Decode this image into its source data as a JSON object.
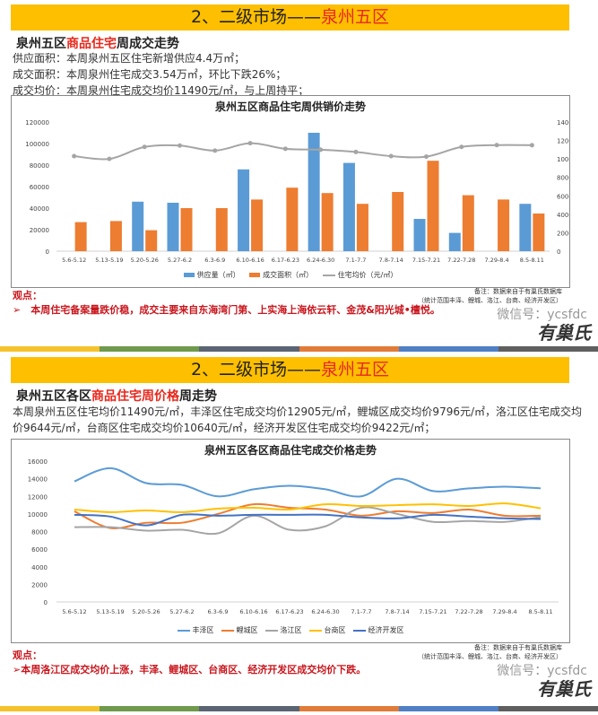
{
  "panel1": {
    "header_prefix": "2、二级市场——",
    "header_highlight": "泉州五区",
    "subtitle_a": "泉州五区",
    "subtitle_b": "商品住宅",
    "subtitle_c": "周成交走势",
    "lines": [
      "供应面积：本周泉州五区住宅新增供应4.4万㎡；",
      "成交面积：本周泉州住宅成交3.54万㎡，环比下跌26%；",
      "成交均价：本周泉州住宅成交均价11490元/㎡，与上周持平；"
    ],
    "note_line1": "备注：数据来自于有巢氏数据库",
    "note_line2": "（统计范围丰泽、鲤城、洛江、台商、经济开发区）",
    "viewpoint_label": "观点：",
    "viewpoint": "➢　本周住宅备案量跌价稳，成交主要来自东海湾门第、上实海上海依云轩、金茂&阳光城•檀悦。"
  },
  "panel2": {
    "header_prefix": "2、二级市场——",
    "header_highlight": "泉州五区",
    "subtitle_a": "泉州五区各区",
    "subtitle_b": "商品住宅周价格",
    "subtitle_c": "周走势",
    "lines": [
      "本周泉州五区住宅均价11490元/㎡，丰泽区住宅成交均价12905元/㎡，鲤城区成交均价9796元/㎡，洛江区住宅成交均",
      "价9644元/㎡，台商区住宅成交均价10640元/㎡，经济开发区住宅成交均价9422元/㎡；"
    ],
    "note_line1": "备注：数据来自于有巢氏数据库",
    "note_line2": "（统计范围丰泽、鲤城、洛江、台商、经济开发区）",
    "viewpoint_label": "观点：",
    "viewpoint": "➢本周洛江区成交均价上涨，丰泽、鲤城区、台商区、经济开发区成交均价下跌。"
  },
  "brand": {
    "logo_text": "有巢氏",
    "wechat": "微信号：ycsfdc"
  },
  "separator_colors": [
    "#f5c22c",
    "#6f9a4c",
    "#5b6472",
    "#e07b39",
    "#4f7fc4",
    "#5f5f5f"
  ],
  "chart_data": [
    {
      "type": "bar",
      "title": "泉州五区商品住宅周供销价走势",
      "categories": [
        "5.6-5.12",
        "5.13-5.19",
        "5.20-5.26",
        "5.27-6.2",
        "6.3-6.9",
        "6.10-6.16",
        "6.17-6.23",
        "6.24-6.30",
        "7.1-7.7",
        "7.8-7.14",
        "7.15-7.21",
        "7.22-7.28",
        "7.29-8.4",
        "8.5-8.11"
      ],
      "ylim": [
        0,
        120000
      ],
      "yticks": [
        0,
        20000,
        40000,
        60000,
        80000,
        100000,
        120000
      ],
      "y2lim": [
        0,
        14000
      ],
      "y2ticks": [
        0,
        2000,
        4000,
        6000,
        8000,
        10000,
        12000,
        14000
      ],
      "legend_position": "bottom",
      "series": [
        {
          "name": "供应量（㎡）",
          "type": "bar",
          "axis": "left",
          "color": "#5b9bd5",
          "values": [
            0,
            0,
            46000,
            45000,
            0,
            76000,
            0,
            110000,
            82000,
            0,
            30000,
            17000,
            0,
            44000
          ]
        },
        {
          "name": "成交面积（㎡）",
          "type": "bar",
          "axis": "left",
          "color": "#ed7d31",
          "values": [
            27000,
            28000,
            19500,
            40000,
            40000,
            48000,
            59000,
            54000,
            44000,
            55000,
            84000,
            52000,
            48000,
            35000
          ]
        },
        {
          "name": "住宅均价（元/㎡）",
          "type": "line",
          "axis": "right",
          "color": "#a5a5a5",
          "values": [
            10300,
            10000,
            11300,
            11450,
            10900,
            11700,
            11100,
            11000,
            10750,
            10300,
            10250,
            11300,
            11500,
            11490
          ]
        }
      ]
    },
    {
      "type": "line",
      "title": "泉州五区各区商品住宅成交价格走势",
      "categories": [
        "5.6-5.12",
        "5.13-5.19",
        "5.20-5.26",
        "5.27-6.2",
        "6.3-6.9",
        "6.10-6.16",
        "6.17-6.23",
        "6.24-6.30",
        "7.1-7.7",
        "7.8-7.14",
        "7.15-7.21",
        "7.22-7.28",
        "7.29-8.4",
        "8.5-8.11"
      ],
      "ylim": [
        0,
        16000
      ],
      "yticks": [
        0,
        2000,
        4000,
        6000,
        8000,
        10000,
        12000,
        14000,
        16000
      ],
      "legend_position": "bottom",
      "series": [
        {
          "name": "丰泽区",
          "color": "#5b9bd5",
          "values": [
            13700,
            15200,
            13500,
            13300,
            12000,
            12800,
            13200,
            12800,
            12000,
            14000,
            12600,
            12900,
            13100,
            12905
          ]
        },
        {
          "name": "鲤城区",
          "color": "#ed7d31",
          "values": [
            10300,
            8400,
            9000,
            9000,
            10000,
            11100,
            10700,
            10500,
            9800,
            10300,
            10100,
            10500,
            9800,
            9796
          ]
        },
        {
          "name": "洛江区",
          "color": "#a5a5a5",
          "values": [
            8500,
            8500,
            8100,
            8200,
            7800,
            9800,
            8200,
            8600,
            10700,
            10000,
            9100,
            9200,
            9100,
            9644
          ]
        },
        {
          "name": "台商区",
          "color": "#ffc000",
          "values": [
            10500,
            10200,
            10400,
            10200,
            10600,
            10700,
            10500,
            11100,
            10900,
            11000,
            11100,
            10900,
            11200,
            10640
          ]
        },
        {
          "name": "经济开发区",
          "color": "#4472c4",
          "values": [
            9900,
            9700,
            8700,
            9900,
            9800,
            9900,
            9900,
            9900,
            9600,
            9500,
            9900,
            9700,
            9500,
            9422
          ]
        }
      ]
    }
  ]
}
